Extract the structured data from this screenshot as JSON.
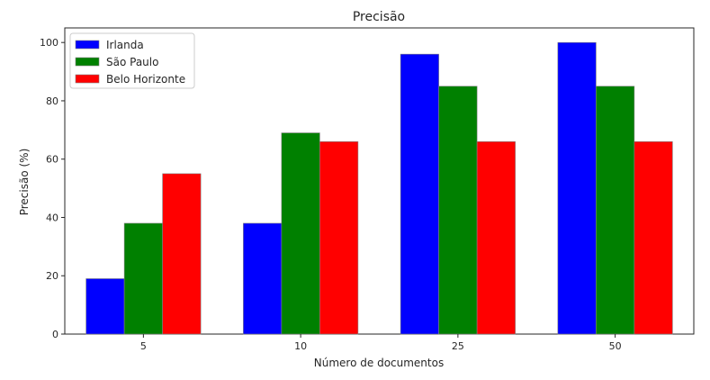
{
  "chart_data": {
    "type": "bar",
    "title": "Precisão",
    "xlabel": "Número de documentos",
    "ylabel": "Precisão (%)",
    "categories": [
      "5",
      "10",
      "25",
      "50"
    ],
    "series": [
      {
        "name": "Irlanda",
        "color": "#0000ff",
        "values": [
          19,
          38,
          96,
          100
        ]
      },
      {
        "name": "São Paulo",
        "color": "#008000",
        "values": [
          38,
          69,
          85,
          85
        ]
      },
      {
        "name": "Belo Horizonte",
        "color": "#ff0000",
        "values": [
          55,
          66,
          66,
          66
        ]
      }
    ],
    "ylim": [
      0,
      105
    ],
    "yticks": [
      0,
      20,
      40,
      60,
      80,
      100
    ],
    "grid": false,
    "legend_position": "top-left"
  }
}
